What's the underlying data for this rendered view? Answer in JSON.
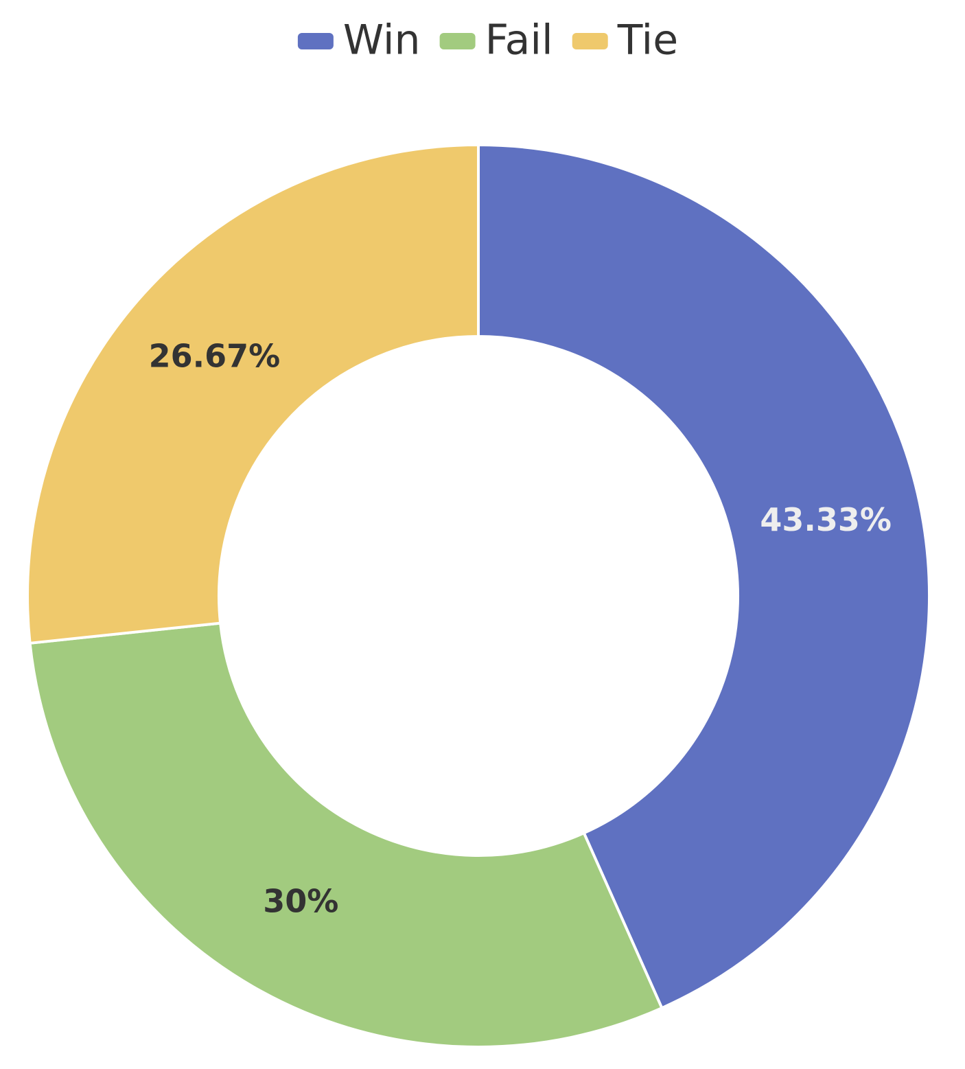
{
  "chart_data": {
    "type": "pie",
    "categories": [
      "Win",
      "Fail",
      "Tie"
    ],
    "values": [
      43.33,
      30,
      26.67
    ],
    "value_labels": [
      "43.33%",
      "30%",
      "26.67%"
    ],
    "colors": [
      "#5f71c1",
      "#a2cb7f",
      "#efc96c"
    ],
    "donut": true,
    "legend": "top"
  }
}
